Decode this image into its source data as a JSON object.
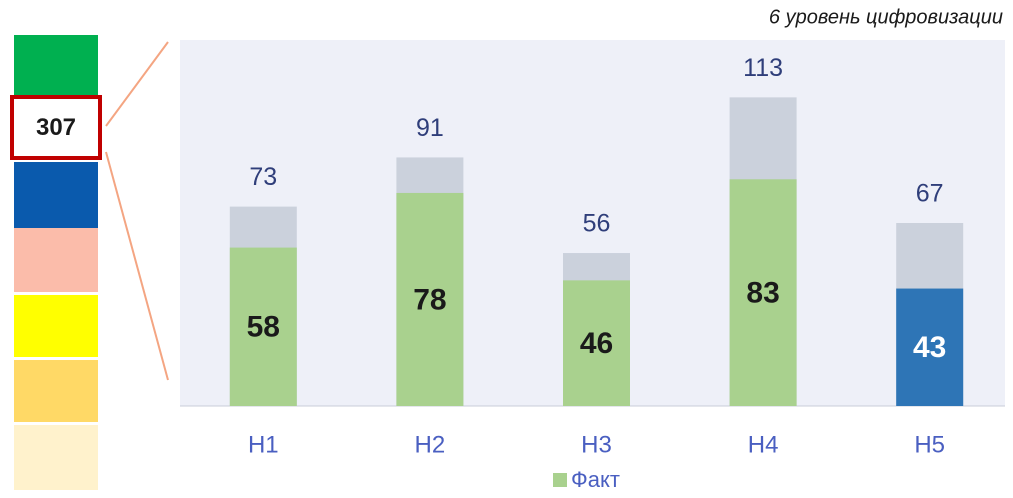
{
  "chart_data": {
    "type": "bar",
    "title": "6 уровень цифровизации",
    "categories": [
      "Н1",
      "Н2",
      "Н3",
      "Н4",
      "Н5"
    ],
    "totals": [
      73,
      91,
      56,
      113,
      67
    ],
    "total_color": "#cbd1dc",
    "series": [
      {
        "name": "Факт",
        "color": "#a9d18e",
        "values": [
          58,
          78,
          46,
          83,
          43
        ],
        "colors": [
          "#a9d18e",
          "#a9d18e",
          "#a9d18e",
          "#a9d18e",
          "#2e75b6"
        ],
        "label_colors": [
          "#1a1a1a",
          "#1a1a1a",
          "#1a1a1a",
          "#1a1a1a",
          "#ffffff"
        ]
      }
    ],
    "ylim": [
      0,
      134
    ],
    "scale": {
      "value": 307,
      "colors": [
        "#00b050",
        "#ffffff",
        "#0a5aad",
        "#fbbcaa",
        "#ffff00",
        "#ffd966",
        "#fff2cc"
      ],
      "highlight": 1,
      "highlight_color": "#c00000"
    }
  }
}
